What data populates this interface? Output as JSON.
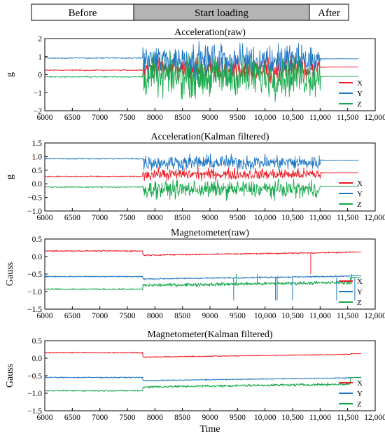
{
  "phases": [
    {
      "label": "Before",
      "x_start": 6000,
      "x_end": 7750,
      "shaded": false
    },
    {
      "label": "Start loading",
      "x_start": 7750,
      "x_end": 11000,
      "shaded": true
    },
    {
      "label": "After",
      "x_start": 11000,
      "x_end": 12000,
      "shaded": false
    }
  ],
  "colors": {
    "X": "#ee1c25",
    "Y": "#1f77c4",
    "Z": "#15a84a",
    "phase_shade": "#b4b4b4"
  },
  "chart_data": [
    {
      "type": "line",
      "title": "Acceleration(raw)",
      "xlabel": "",
      "ylabel": "g",
      "xlim": [
        6000,
        12000
      ],
      "ylim": [
        -2,
        2
      ],
      "x_ticks": [
        6000,
        6500,
        7000,
        7500,
        8000,
        8500,
        9000,
        9500,
        10000,
        10500,
        11000,
        11500,
        12000
      ],
      "x_tick_labels": [
        "6000",
        "6500",
        "7000",
        "7500",
        "8000",
        "8500",
        "9000",
        "9500",
        "10,000",
        "10,500",
        "11,000",
        "11,500",
        "12,000"
      ],
      "y_ticks": [
        -2,
        -1,
        0,
        1,
        2
      ],
      "y_tick_labels": [
        "−2",
        "−1",
        "0",
        "1",
        "2"
      ],
      "legend_position": "bottom-right",
      "series": [
        {
          "name": "X",
          "color": "#ee1c25",
          "x_start": 6000,
          "x_end": 11700,
          "before_level": 0.25,
          "active_start": 7780,
          "active_end": 11000,
          "active_mean": 0.35,
          "active_amplitude": 0.9,
          "after_level": 0.42
        },
        {
          "name": "Y",
          "color": "#1f77c4",
          "x_start": 6000,
          "x_end": 11700,
          "before_level": 0.92,
          "active_start": 7780,
          "active_end": 11000,
          "active_mean": 0.8,
          "active_amplitude": 1.3,
          "after_level": 0.88
        },
        {
          "name": "Z",
          "color": "#15a84a",
          "x_start": 6000,
          "x_end": 11700,
          "before_level": -0.12,
          "active_start": 7780,
          "active_end": 11000,
          "active_mean": -0.1,
          "active_amplitude": 1.6,
          "after_level": -0.1
        }
      ]
    },
    {
      "type": "line",
      "title": "Acceleration(Kalman filtered)",
      "xlabel": "",
      "ylabel": "g",
      "xlim": [
        6000,
        12000
      ],
      "ylim": [
        -1.0,
        1.5
      ],
      "x_ticks": [
        6000,
        6500,
        7000,
        7500,
        8000,
        8500,
        9000,
        9500,
        10000,
        10500,
        11000,
        11500,
        12000
      ],
      "x_tick_labels": [
        "6000",
        "6500",
        "7000",
        "7500",
        "8000",
        "8500",
        "9000",
        "9500",
        "10,000",
        "10,500",
        "11,000",
        "11,500",
        "12,000"
      ],
      "y_ticks": [
        -1.0,
        -0.5,
        0.0,
        0.5,
        1.0,
        1.5
      ],
      "y_tick_labels": [
        "−1.0",
        "−0.5",
        "0.0",
        "0.5",
        "1.0",
        "1.5"
      ],
      "legend_position": "bottom-right",
      "series": [
        {
          "name": "X",
          "color": "#ee1c25",
          "x_start": 6000,
          "x_end": 11700,
          "before_level": 0.27,
          "active_start": 7780,
          "active_end": 11000,
          "active_mean": 0.35,
          "active_amplitude": 0.3,
          "after_level": 0.4
        },
        {
          "name": "Y",
          "color": "#1f77c4",
          "x_start": 6000,
          "x_end": 11700,
          "before_level": 0.92,
          "active_start": 7780,
          "active_end": 11000,
          "active_mean": 0.78,
          "active_amplitude": 0.4,
          "after_level": 0.87
        },
        {
          "name": "Z",
          "color": "#15a84a",
          "x_start": 6000,
          "x_end": 11700,
          "before_level": -0.12,
          "active_start": 7780,
          "active_end": 11000,
          "active_mean": -0.2,
          "active_amplitude": 0.45,
          "after_level": -0.1
        }
      ]
    },
    {
      "type": "line",
      "title": "Magnetometer(raw)",
      "xlabel": "",
      "ylabel": "Gauss",
      "xlim": [
        6000,
        12000
      ],
      "ylim": [
        -1.5,
        0.5
      ],
      "x_ticks": [
        6000,
        6500,
        7000,
        7500,
        8000,
        8500,
        9000,
        9500,
        10000,
        10500,
        11000,
        11500,
        12000
      ],
      "x_tick_labels": [
        "6000",
        "6500",
        "7000",
        "7500",
        "8000",
        "8500",
        "9000",
        "9500",
        "10,000",
        "10,500",
        "11,000",
        "11,500",
        "12,000"
      ],
      "y_ticks": [
        -1.5,
        -1.0,
        -0.5,
        0.0,
        0.5
      ],
      "y_tick_labels": [
        "−1.5",
        "−1.0",
        "−0.5",
        "0.0",
        "0.5"
      ],
      "legend_position": "bottom-right",
      "series": [
        {
          "name": "X",
          "color": "#ee1c25",
          "x_start": 6000,
          "x_end": 11750,
          "before_level": 0.16,
          "active_start": 7780,
          "active_end": 11550,
          "active_mean": 0.08,
          "active_amplitude": 0.03,
          "after_level": 0.13
        },
        {
          "name": "Y",
          "color": "#1f77c4",
          "x_start": 6000,
          "x_end": 11750,
          "before_level": -0.57,
          "active_start": 7780,
          "active_end": 11550,
          "active_mean": -0.6,
          "active_amplitude": 0.03,
          "after_level": -0.55
        },
        {
          "name": "Z",
          "color": "#15a84a",
          "x_start": 6000,
          "x_end": 11750,
          "before_level": -0.93,
          "active_start": 7780,
          "active_end": 11550,
          "active_mean": -0.78,
          "active_amplitude": 0.07,
          "after_level": -0.6
        }
      ]
    },
    {
      "type": "line",
      "title": "Magnetometer(Kalman filtered)",
      "xlabel": "Time",
      "ylabel": "Gauss",
      "xlim": [
        6000,
        12000
      ],
      "ylim": [
        -1.5,
        0.5
      ],
      "x_ticks": [
        6000,
        6500,
        7000,
        7500,
        8000,
        8500,
        9000,
        9500,
        10000,
        10500,
        11000,
        11500,
        12000
      ],
      "x_tick_labels": [
        "6000",
        "6500",
        "7000",
        "7500",
        "8000",
        "8500",
        "9000",
        "9500",
        "10,000",
        "10,500",
        "11,000",
        "11,500",
        "12,000"
      ],
      "y_ticks": [
        -1.5,
        -1.0,
        -0.5,
        0.0,
        0.5
      ],
      "y_tick_labels": [
        "−1.5",
        "−1.0",
        "−0.5",
        "0.0",
        "0.5"
      ],
      "legend_position": "bottom-right",
      "series": [
        {
          "name": "X",
          "color": "#ee1c25",
          "x_start": 6000,
          "x_end": 11750,
          "before_level": 0.16,
          "active_start": 7780,
          "active_end": 11550,
          "active_mean": 0.07,
          "active_amplitude": 0.02,
          "after_level": 0.13
        },
        {
          "name": "Y",
          "color": "#1f77c4",
          "x_start": 6000,
          "x_end": 11750,
          "before_level": -0.55,
          "active_start": 7780,
          "active_end": 11550,
          "active_mean": -0.6,
          "active_amplitude": 0.02,
          "after_level": -0.55
        },
        {
          "name": "Z",
          "color": "#15a84a",
          "x_start": 6000,
          "x_end": 11750,
          "before_level": -0.93,
          "active_start": 7780,
          "active_end": 11550,
          "active_mean": -0.78,
          "active_amplitude": 0.05,
          "after_level": -0.55
        }
      ]
    }
  ]
}
